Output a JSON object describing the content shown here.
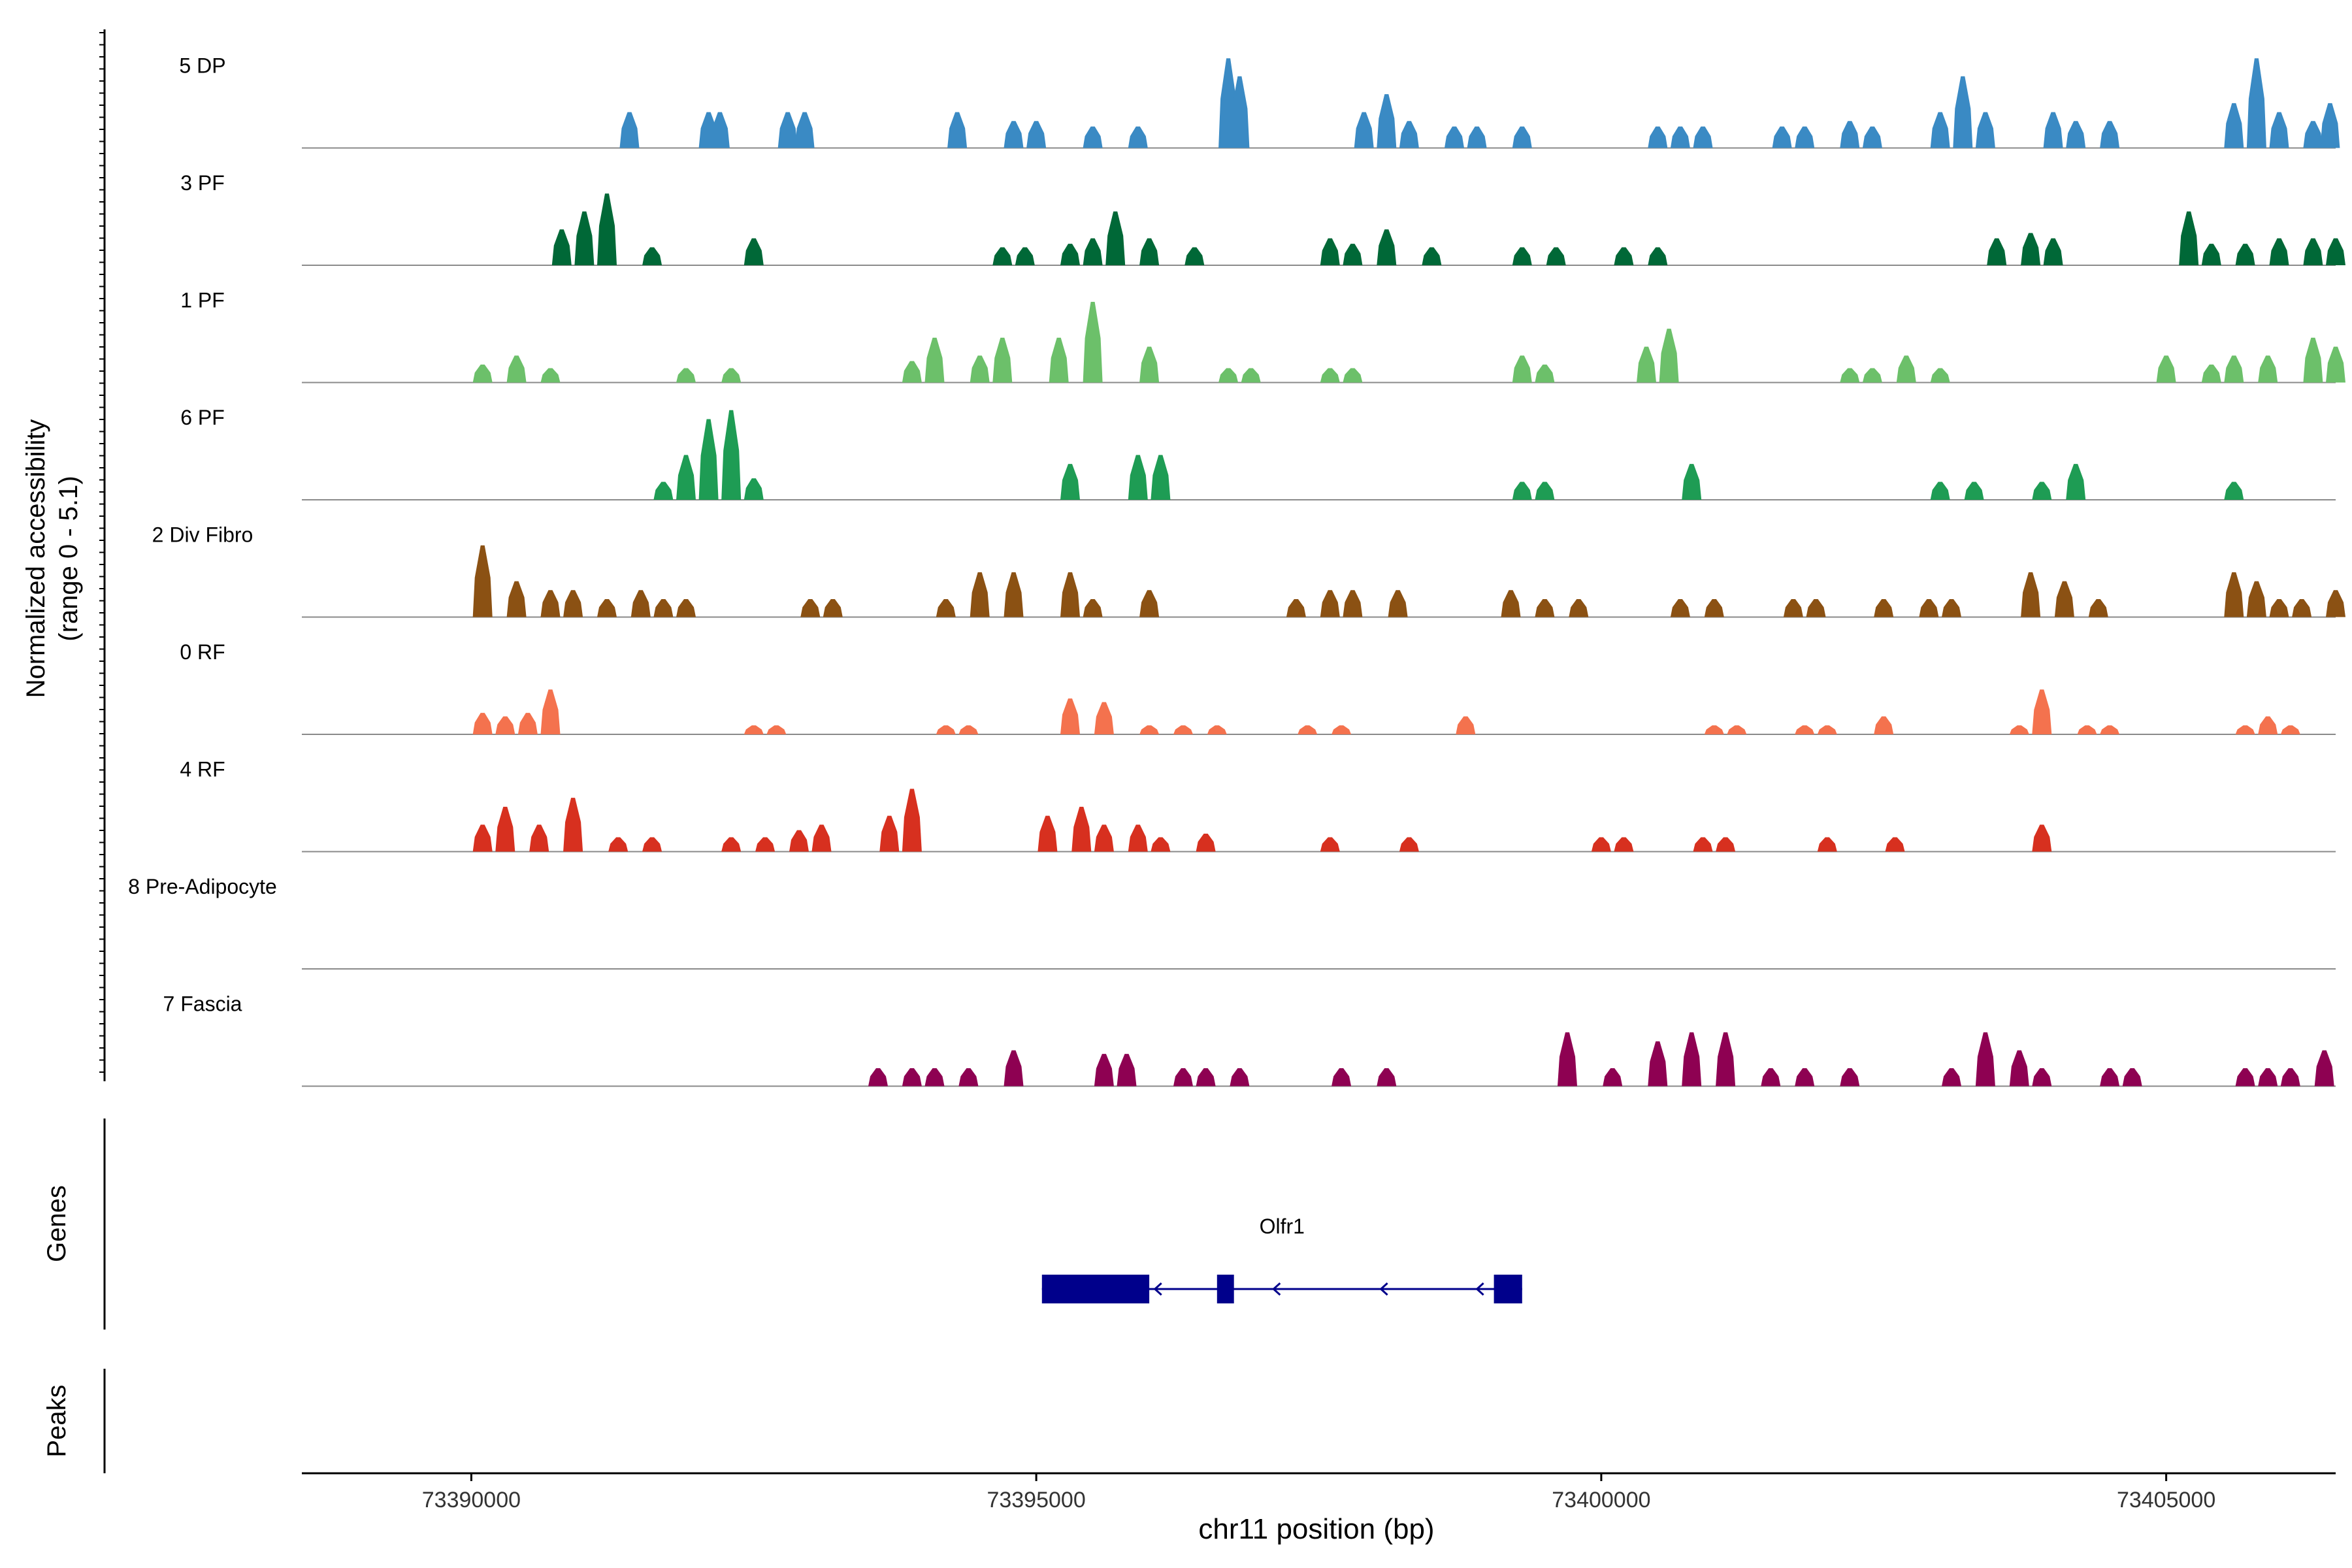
{
  "chart_data": {
    "type": "coverage",
    "y_axis_title": "Normalized accessibility",
    "y_axis_range_label": "(range 0 - 5.1)",
    "y_range": [
      0,
      5.1
    ],
    "x_label": "chr11 position (bp)",
    "x_range": [
      73388500,
      73406500
    ],
    "x_ticks": [
      73390000,
      73395000,
      73400000,
      73405000
    ],
    "x_tick_labels": [
      "73390000",
      "73395000",
      "73400000",
      "73405000"
    ],
    "tracks": [
      {
        "name": "5 DP",
        "color": "#3A8AC4",
        "peaks": [
          [
            73391400,
            2
          ],
          [
            73392100,
            2
          ],
          [
            73392200,
            2
          ],
          [
            73392800,
            2
          ],
          [
            73392950,
            2
          ],
          [
            73394300,
            2
          ],
          [
            73394800,
            1.5
          ],
          [
            73395000,
            1.5
          ],
          [
            73395500,
            1.2
          ],
          [
            73395900,
            1.2
          ],
          [
            73396700,
            5
          ],
          [
            73396800,
            4
          ],
          [
            73397900,
            2
          ],
          [
            73398100,
            3
          ],
          [
            73398300,
            1.5
          ],
          [
            73398700,
            1.2
          ],
          [
            73398900,
            1.2
          ],
          [
            73399300,
            1.2
          ],
          [
            73400500,
            1.2
          ],
          [
            73400700,
            1.2
          ],
          [
            73400900,
            1.2
          ],
          [
            73401600,
            1.2
          ],
          [
            73401800,
            1.2
          ],
          [
            73402200,
            1.5
          ],
          [
            73402400,
            1.2
          ],
          [
            73403000,
            2
          ],
          [
            73403200,
            4
          ],
          [
            73403400,
            2
          ],
          [
            73404000,
            2
          ],
          [
            73404200,
            1.5
          ],
          [
            73404500,
            1.5
          ],
          [
            73405600,
            2.5
          ],
          [
            73405800,
            5
          ],
          [
            73406000,
            2
          ],
          [
            73406300,
            1.5
          ],
          [
            73406450,
            2.5
          ]
        ]
      },
      {
        "name": "3 PF",
        "color": "#006837",
        "peaks": [
          [
            73390800,
            2
          ],
          [
            73391000,
            3
          ],
          [
            73391200,
            4
          ],
          [
            73391600,
            1
          ],
          [
            73392500,
            1.5
          ],
          [
            73394700,
            1
          ],
          [
            73394900,
            1
          ],
          [
            73395300,
            1.2
          ],
          [
            73395500,
            1.5
          ],
          [
            73395700,
            3
          ],
          [
            73396000,
            1.5
          ],
          [
            73396400,
            1
          ],
          [
            73397600,
            1.5
          ],
          [
            73397800,
            1.2
          ],
          [
            73398100,
            2
          ],
          [
            73398500,
            1
          ],
          [
            73399300,
            1
          ],
          [
            73399600,
            1
          ],
          [
            73400200,
            1
          ],
          [
            73400500,
            1
          ],
          [
            73403500,
            1.5
          ],
          [
            73403800,
            1.8
          ],
          [
            73404000,
            1.5
          ],
          [
            73405200,
            3
          ],
          [
            73405400,
            1.2
          ],
          [
            73405700,
            1.2
          ],
          [
            73406000,
            1.5
          ],
          [
            73406300,
            1.5
          ],
          [
            73406500,
            1.5
          ]
        ]
      },
      {
        "name": "1 PF",
        "color": "#6CC06A",
        "peaks": [
          [
            73390100,
            1
          ],
          [
            73390400,
            1.5
          ],
          [
            73390700,
            0.8
          ],
          [
            73391900,
            0.8
          ],
          [
            73392300,
            0.8
          ],
          [
            73393900,
            1.2
          ],
          [
            73394100,
            2.5
          ],
          [
            73394500,
            1.5
          ],
          [
            73394700,
            2.5
          ],
          [
            73395200,
            2.5
          ],
          [
            73395500,
            4.5
          ],
          [
            73396000,
            2
          ],
          [
            73396700,
            0.8
          ],
          [
            73396900,
            0.8
          ],
          [
            73397600,
            0.8
          ],
          [
            73397800,
            0.8
          ],
          [
            73399300,
            1.5
          ],
          [
            73399500,
            1
          ],
          [
            73400400,
            2
          ],
          [
            73400600,
            3
          ],
          [
            73402200,
            0.8
          ],
          [
            73402400,
            0.8
          ],
          [
            73402700,
            1.5
          ],
          [
            73403000,
            0.8
          ],
          [
            73405000,
            1.5
          ],
          [
            73405400,
            1
          ],
          [
            73405600,
            1.5
          ],
          [
            73405900,
            1.5
          ],
          [
            73406300,
            2.5
          ],
          [
            73406500,
            2
          ]
        ]
      },
      {
        "name": "6 PF",
        "color": "#1E9C54",
        "peaks": [
          [
            73391700,
            1
          ],
          [
            73391900,
            2.5
          ],
          [
            73392100,
            4.5
          ],
          [
            73392300,
            5
          ],
          [
            73392500,
            1.2
          ],
          [
            73395300,
            2
          ],
          [
            73395900,
            2.5
          ],
          [
            73396100,
            2.5
          ],
          [
            73399300,
            1
          ],
          [
            73399500,
            1
          ],
          [
            73400800,
            2
          ],
          [
            73403000,
            1
          ],
          [
            73403300,
            1
          ],
          [
            73403900,
            1
          ],
          [
            73404200,
            2
          ],
          [
            73405600,
            1
          ]
        ]
      },
      {
        "name": "2 Div Fibro",
        "color": "#8B5113",
        "peaks": [
          [
            73390100,
            4
          ],
          [
            73390400,
            2
          ],
          [
            73390700,
            1.5
          ],
          [
            73390900,
            1.5
          ],
          [
            73391200,
            1
          ],
          [
            73391500,
            1.5
          ],
          [
            73391700,
            1
          ],
          [
            73391900,
            1
          ],
          [
            73393000,
            1
          ],
          [
            73393200,
            1
          ],
          [
            73394200,
            1
          ],
          [
            73394500,
            2.5
          ],
          [
            73394800,
            2.5
          ],
          [
            73395300,
            2.5
          ],
          [
            73395500,
            1
          ],
          [
            73396000,
            1.5
          ],
          [
            73397300,
            1
          ],
          [
            73397600,
            1.5
          ],
          [
            73397800,
            1.5
          ],
          [
            73398200,
            1.5
          ],
          [
            73399200,
            1.5
          ],
          [
            73399500,
            1
          ],
          [
            73399800,
            1
          ],
          [
            73400700,
            1
          ],
          [
            73401000,
            1
          ],
          [
            73401700,
            1
          ],
          [
            73401900,
            1
          ],
          [
            73402500,
            1
          ],
          [
            73402900,
            1
          ],
          [
            73403100,
            1
          ],
          [
            73403800,
            2.5
          ],
          [
            73404100,
            2
          ],
          [
            73404400,
            1
          ],
          [
            73405600,
            2.5
          ],
          [
            73405800,
            2
          ],
          [
            73406000,
            1
          ],
          [
            73406200,
            1
          ],
          [
            73406500,
            1.5
          ]
        ]
      },
      {
        "name": "0 RF",
        "color": "#F4724E",
        "peaks": [
          [
            73390100,
            1.2
          ],
          [
            73390300,
            1
          ],
          [
            73390500,
            1.2
          ],
          [
            73390700,
            2.5
          ],
          [
            73392500,
            0.5
          ],
          [
            73392700,
            0.5
          ],
          [
            73394200,
            0.5
          ],
          [
            73394400,
            0.5
          ],
          [
            73395300,
            2
          ],
          [
            73395600,
            1.8
          ],
          [
            73396000,
            0.5
          ],
          [
            73396300,
            0.5
          ],
          [
            73396600,
            0.5
          ],
          [
            73397400,
            0.5
          ],
          [
            73397700,
            0.5
          ],
          [
            73398800,
            1
          ],
          [
            73401000,
            0.5
          ],
          [
            73401200,
            0.5
          ],
          [
            73401800,
            0.5
          ],
          [
            73402000,
            0.5
          ],
          [
            73402500,
            1
          ],
          [
            73403700,
            0.5
          ],
          [
            73403900,
            2.5
          ],
          [
            73404300,
            0.5
          ],
          [
            73404500,
            0.5
          ],
          [
            73405700,
            0.5
          ],
          [
            73405900,
            1
          ],
          [
            73406100,
            0.5
          ]
        ]
      },
      {
        "name": "4 RF",
        "color": "#D7301F",
        "peaks": [
          [
            73390100,
            1.5
          ],
          [
            73390300,
            2.5
          ],
          [
            73390600,
            1.5
          ],
          [
            73390900,
            3
          ],
          [
            73391300,
            0.8
          ],
          [
            73391600,
            0.8
          ],
          [
            73392300,
            0.8
          ],
          [
            73392600,
            0.8
          ],
          [
            73392900,
            1.2
          ],
          [
            73393100,
            1.5
          ],
          [
            73393700,
            2
          ],
          [
            73393900,
            3.5
          ],
          [
            73395100,
            2
          ],
          [
            73395400,
            2.5
          ],
          [
            73395600,
            1.5
          ],
          [
            73395900,
            1.5
          ],
          [
            73396100,
            0.8
          ],
          [
            73396500,
            1
          ],
          [
            73397600,
            0.8
          ],
          [
            73398300,
            0.8
          ],
          [
            73400000,
            0.8
          ],
          [
            73400200,
            0.8
          ],
          [
            73400900,
            0.8
          ],
          [
            73401100,
            0.8
          ],
          [
            73402000,
            0.8
          ],
          [
            73402600,
            0.8
          ],
          [
            73403900,
            1.5
          ]
        ]
      },
      {
        "name": "8 Pre-Adipocyte",
        "color": "#999999",
        "peaks": []
      },
      {
        "name": "7 Fascia",
        "color": "#8E0152",
        "peaks": [
          [
            73393600,
            1
          ],
          [
            73393900,
            1
          ],
          [
            73394100,
            1
          ],
          [
            73394400,
            1
          ],
          [
            73394800,
            2
          ],
          [
            73395600,
            1.8
          ],
          [
            73395800,
            1.8
          ],
          [
            73396300,
            1
          ],
          [
            73396500,
            1
          ],
          [
            73396800,
            1
          ],
          [
            73397700,
            1
          ],
          [
            73398100,
            1
          ],
          [
            73399700,
            3
          ],
          [
            73400100,
            1
          ],
          [
            73400500,
            2.5
          ],
          [
            73400800,
            3
          ],
          [
            73401100,
            3
          ],
          [
            73401500,
            1
          ],
          [
            73401800,
            1
          ],
          [
            73402200,
            1
          ],
          [
            73403100,
            1
          ],
          [
            73403400,
            3
          ],
          [
            73403700,
            2
          ],
          [
            73403900,
            1
          ],
          [
            73404500,
            1
          ],
          [
            73404700,
            1
          ],
          [
            73405700,
            1
          ],
          [
            73405900,
            1
          ],
          [
            73406100,
            1
          ],
          [
            73406400,
            2
          ]
        ]
      }
    ],
    "genes_label": "Genes",
    "gene": {
      "name": "Olfr1",
      "strand": "-",
      "start": 73395050,
      "end": 73399300,
      "exons": [
        [
          73395050,
          73396000
        ],
        [
          73396600,
          73396750
        ],
        [
          73399050,
          73399300
        ]
      ],
      "color": "#00008B"
    },
    "peaks_label": "Peaks"
  }
}
